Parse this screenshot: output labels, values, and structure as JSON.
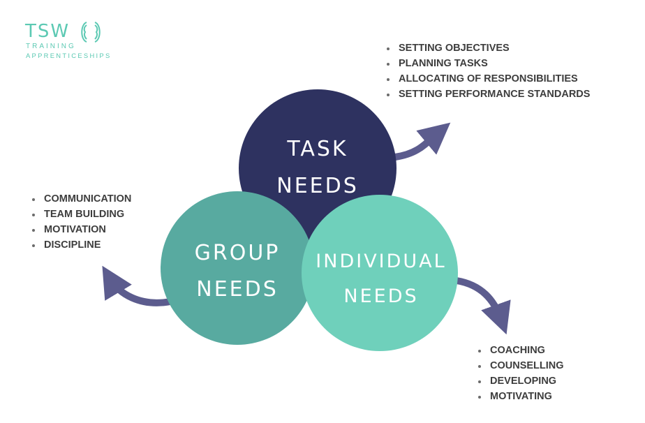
{
  "logo": {
    "name": "TSW",
    "line1": "TRAINING",
    "line2": "APPRENTICESHIPS",
    "color": "#5cc9b3"
  },
  "circles": {
    "task": {
      "line1": "TASK",
      "line2": "NEEDS",
      "color": "#2e3260"
    },
    "group": {
      "line1": "GROUP",
      "line2": "NEEDS",
      "color": "#58aaa0"
    },
    "individual": {
      "line1": "INDIVIDUAL",
      "line2": "NEEDS",
      "color": "#6fd0bb"
    }
  },
  "arrow_color": "#5c5c8e",
  "lists": {
    "task": [
      "SETTING OBJECTIVES",
      "PLANNING TASKS",
      "ALLOCATING OF RESPONSIBILITIES",
      "SETTING PERFORMANCE STANDARDS"
    ],
    "group": [
      "COMMUNICATION",
      "TEAM BUILDING",
      "MOTIVATION",
      "DISCIPLINE"
    ],
    "individual": [
      "COACHING",
      "COUNSELLING",
      "DEVELOPING",
      "MOTIVATING"
    ]
  }
}
